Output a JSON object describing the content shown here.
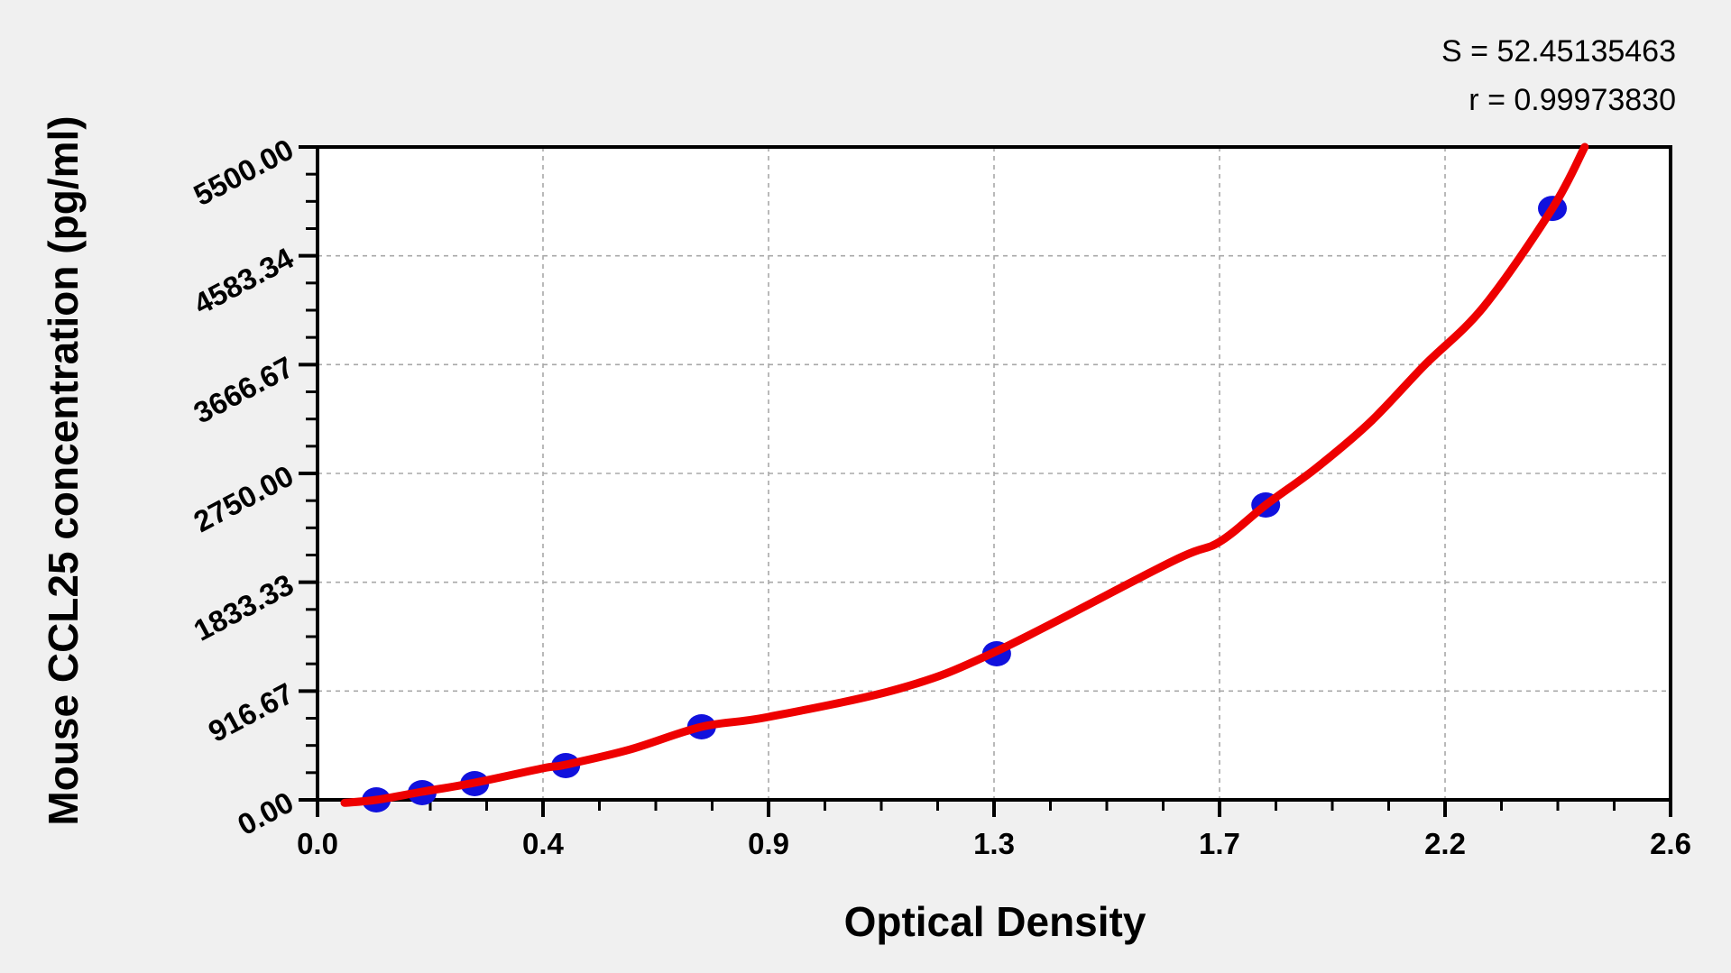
{
  "page": {
    "background": "#f0f0f0"
  },
  "chart_data": {
    "type": "scatter",
    "title": "",
    "xlabel": "Optical Density",
    "ylabel": "Mouse CCL25 concentration (pg/ml)",
    "xlim": [
      0,
      2.6
    ],
    "ylim": [
      0,
      5500
    ],
    "x_tick_values": [
      0,
      0.4333,
      0.8667,
      1.3,
      1.7333,
      2.1667,
      2.6
    ],
    "x_tick_labels": [
      "0.0",
      "0.4",
      "0.9",
      "1.3",
      "1.7",
      "2.2",
      "2.6"
    ],
    "y_tick_values": [
      0,
      916.67,
      1833.33,
      2750.0,
      3666.67,
      4583.34,
      5500.0
    ],
    "y_tick_labels": [
      "0.00",
      "916.67",
      "1833.33",
      "2750.00",
      "3666.67",
      "4583.34",
      "5500.00"
    ],
    "minor_per_major": 4,
    "grid": "dashed",
    "legend": "none",
    "series": [
      {
        "name": "standard-points",
        "type": "scatter",
        "marker": "ellipse",
        "points": [
          [
            0.113,
            0
          ],
          [
            0.201,
            61
          ],
          [
            0.302,
            137
          ],
          [
            0.477,
            289
          ],
          [
            0.738,
            615
          ],
          [
            1.305,
            1231
          ],
          [
            1.822,
            2484
          ],
          [
            2.373,
            4983
          ]
        ]
      },
      {
        "name": "fitted-curve",
        "type": "line",
        "points": [
          [
            0.052,
            -25
          ],
          [
            0.113,
            0
          ],
          [
            0.201,
            68
          ],
          [
            0.302,
            144
          ],
          [
            0.433,
            266
          ],
          [
            0.477,
            296
          ],
          [
            0.601,
            425
          ],
          [
            0.738,
            615
          ],
          [
            0.867,
            699
          ],
          [
            1.122,
            942
          ],
          [
            1.305,
            1253
          ],
          [
            1.641,
            2006
          ],
          [
            1.733,
            2173
          ],
          [
            1.822,
            2484
          ],
          [
            1.919,
            2795
          ],
          [
            2.023,
            3183
          ],
          [
            2.127,
            3661
          ],
          [
            2.241,
            4155
          ],
          [
            2.373,
            4983
          ],
          [
            2.435,
            5500
          ]
        ]
      }
    ],
    "annotations": {
      "s": "S = 52.45135463",
      "r": "r = 0.99973830"
    },
    "colors": {
      "point": "#1111dd",
      "curve": "#ee0000",
      "grid": "#a8a8a8",
      "axis": "#000000",
      "plot_bg": "#ffffff",
      "page_bg": "#f0f0f0"
    }
  }
}
